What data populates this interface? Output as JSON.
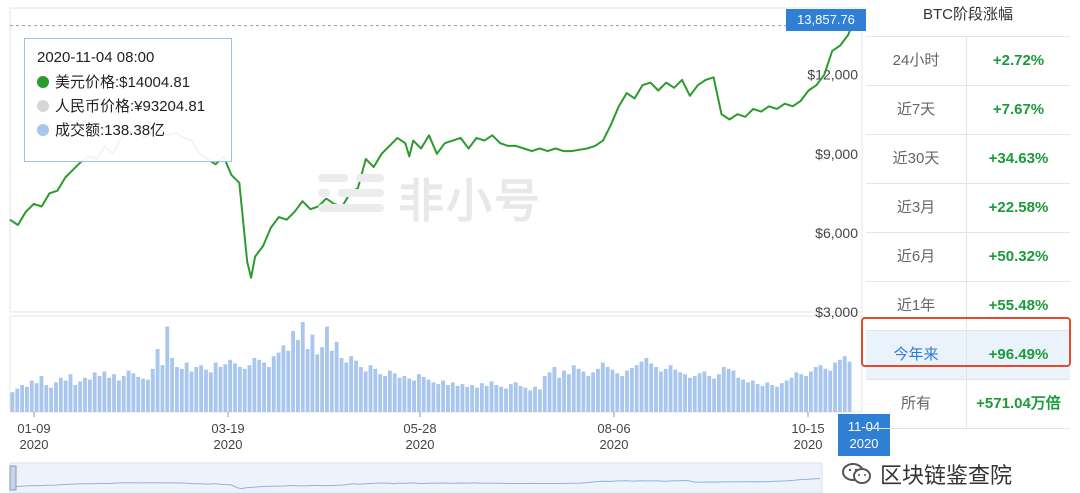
{
  "tooltip": {
    "datetime": "2020-11-04 08:00",
    "usd_label": "美元价格:$14004.81",
    "cny_label": "人民币价格:¥93204.81",
    "vol_label": "成交额:138.38亿",
    "usd_color": "#2c9b2e",
    "cny_color": "#d6d6d6",
    "vol_color": "#a8c6ee"
  },
  "price_tag": "13,857.76",
  "watermark": "非小号",
  "side": {
    "title": "BTC阶段涨幅",
    "rows": [
      {
        "label": "24小时",
        "value": "+2.72%"
      },
      {
        "label": "近7天",
        "value": "+7.67%"
      },
      {
        "label": "近30天",
        "value": "+34.63%"
      },
      {
        "label": "近3月",
        "value": "+22.58%"
      },
      {
        "label": "近6月",
        "value": "+50.32%"
      },
      {
        "label": "近1年",
        "value": "+55.48%"
      },
      {
        "label": "今年来",
        "value": "+96.49%"
      },
      {
        "label": "所有",
        "value": "+571.04万倍"
      }
    ]
  },
  "footer_watermark": "区块链鉴查院",
  "chart_data": {
    "type": "line",
    "series": [
      {
        "name": "美元价格",
        "color": "#2c9b2e"
      }
    ],
    "y_ticks": [
      "$3,000",
      "$6,000",
      "$9,000",
      "$12,000"
    ],
    "ylim": [
      3000,
      14300
    ],
    "x_tick_labels": [
      {
        "md": "01-09",
        "year": "2020"
      },
      {
        "md": "03-19",
        "year": "2020"
      },
      {
        "md": "05-28",
        "year": "2020"
      },
      {
        "md": "08-06",
        "year": "2020"
      },
      {
        "md": "10-15",
        "year": "2020"
      }
    ],
    "current_x_label": {
      "md": "11-04",
      "year": "2020"
    },
    "current_price": 13857.76,
    "price_points": [
      [
        0,
        6500
      ],
      [
        2,
        6300
      ],
      [
        4,
        6800
      ],
      [
        6,
        7100
      ],
      [
        8,
        7000
      ],
      [
        10,
        7500
      ],
      [
        12,
        7600
      ],
      [
        14,
        8100
      ],
      [
        16,
        8400
      ],
      [
        18,
        8700
      ],
      [
        20,
        8900
      ],
      [
        22,
        8800
      ],
      [
        24,
        9300
      ],
      [
        26,
        9000
      ],
      [
        28,
        9600
      ],
      [
        30,
        9800
      ],
      [
        32,
        9900
      ],
      [
        34,
        9600
      ],
      [
        36,
        9800
      ],
      [
        38,
        9900
      ],
      [
        40,
        9700
      ],
      [
        42,
        9800
      ],
      [
        44,
        9600
      ],
      [
        46,
        9500
      ],
      [
        48,
        9000
      ],
      [
        50,
        8800
      ],
      [
        52,
        8600
      ],
      [
        54,
        8900
      ],
      [
        56,
        8200
      ],
      [
        58,
        7900
      ],
      [
        60,
        4900
      ],
      [
        61,
        4300
      ],
      [
        62,
        5100
      ],
      [
        64,
        5500
      ],
      [
        66,
        6200
      ],
      [
        68,
        6600
      ],
      [
        70,
        6500
      ],
      [
        72,
        6800
      ],
      [
        74,
        7200
      ],
      [
        76,
        6900
      ],
      [
        78,
        7000
      ],
      [
        80,
        7300
      ],
      [
        82,
        7100
      ],
      [
        84,
        7000
      ],
      [
        86,
        7500
      ],
      [
        88,
        7700
      ],
      [
        90,
        8800
      ],
      [
        92,
        8500
      ],
      [
        94,
        9000
      ],
      [
        96,
        9300
      ],
      [
        98,
        9600
      ],
      [
        100,
        9400
      ],
      [
        101,
        8900
      ],
      [
        102,
        9500
      ],
      [
        104,
        9200
      ],
      [
        106,
        9700
      ],
      [
        108,
        9000
      ],
      [
        110,
        9400
      ],
      [
        112,
        9500
      ],
      [
        114,
        9600
      ],
      [
        116,
        9200
      ],
      [
        118,
        9600
      ],
      [
        120,
        9500
      ],
      [
        122,
        9700
      ],
      [
        124,
        9400
      ],
      [
        126,
        9300
      ],
      [
        128,
        9300
      ],
      [
        130,
        9200
      ],
      [
        132,
        9100
      ],
      [
        134,
        9200
      ],
      [
        136,
        9100
      ],
      [
        138,
        9200
      ],
      [
        140,
        9100
      ],
      [
        142,
        9100
      ],
      [
        144,
        9150
      ],
      [
        146,
        9200
      ],
      [
        148,
        9300
      ],
      [
        150,
        9500
      ],
      [
        152,
        10100
      ],
      [
        154,
        10800
      ],
      [
        156,
        11300
      ],
      [
        158,
        11100
      ],
      [
        160,
        11600
      ],
      [
        162,
        11700
      ],
      [
        164,
        11400
      ],
      [
        166,
        11700
      ],
      [
        168,
        11500
      ],
      [
        170,
        11800
      ],
      [
        172,
        11200
      ],
      [
        174,
        11600
      ],
      [
        176,
        11800
      ],
      [
        178,
        11900
      ],
      [
        180,
        10500
      ],
      [
        182,
        10300
      ],
      [
        184,
        10500
      ],
      [
        186,
        10400
      ],
      [
        188,
        10700
      ],
      [
        190,
        10600
      ],
      [
        192,
        10800
      ],
      [
        194,
        10700
      ],
      [
        196,
        10900
      ],
      [
        198,
        10800
      ],
      [
        200,
        11000
      ],
      [
        202,
        11400
      ],
      [
        204,
        11600
      ],
      [
        206,
        12000
      ],
      [
        208,
        12900
      ],
      [
        210,
        13100
      ],
      [
        212,
        13500
      ],
      [
        213,
        13857.76
      ]
    ],
    "volume_values": [
      22,
      26,
      30,
      28,
      35,
      32,
      40,
      30,
      27,
      33,
      38,
      35,
      42,
      30,
      34,
      38,
      36,
      44,
      40,
      45,
      38,
      42,
      35,
      40,
      46,
      43,
      39,
      37,
      36,
      48,
      70,
      52,
      95,
      60,
      50,
      48,
      55,
      45,
      50,
      52,
      47,
      44,
      55,
      50,
      53,
      58,
      54,
      50,
      48,
      52,
      60,
      58,
      55,
      50,
      62,
      66,
      74,
      68,
      90,
      80,
      100,
      70,
      86,
      64,
      72,
      95,
      68,
      78,
      60,
      55,
      62,
      57,
      50,
      45,
      52,
      48,
      42,
      40,
      46,
      43,
      38,
      40,
      37,
      35,
      42,
      39,
      36,
      33,
      31,
      35,
      30,
      33,
      29,
      31,
      28,
      30,
      27,
      32,
      29,
      34,
      30,
      28,
      26,
      31,
      33,
      29,
      27,
      24,
      28,
      25,
      40,
      44,
      50,
      38,
      46,
      42,
      52,
      48,
      45,
      40,
      44,
      48,
      55,
      50,
      47,
      43,
      40,
      46,
      49,
      52,
      56,
      60,
      54,
      50,
      45,
      48,
      52,
      47,
      44,
      42,
      38,
      40,
      43,
      45,
      40,
      37,
      42,
      50,
      48,
      46,
      38,
      36,
      33,
      35,
      31,
      29,
      33,
      30,
      28,
      32,
      35,
      38,
      44,
      42,
      40,
      45,
      50,
      52,
      48,
      46,
      55,
      58,
      62,
      56
    ]
  }
}
